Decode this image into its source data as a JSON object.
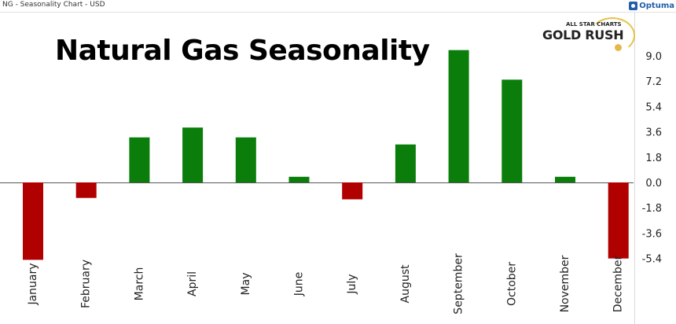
{
  "window": {
    "title": "NG - Seasonality Chart - USD",
    "brand": "Optuma"
  },
  "logo": {
    "line1": "ALL STAR CHARTS",
    "line2": "GOLD RUSH"
  },
  "chart_data": {
    "type": "bar",
    "title": "Natural Gas Seasonality",
    "categories": [
      "January",
      "February",
      "March",
      "April",
      "May",
      "June",
      "July",
      "August",
      "September",
      "October",
      "November",
      "December"
    ],
    "values": [
      -5.5,
      -1.1,
      3.2,
      3.9,
      3.2,
      0.4,
      -1.2,
      2.7,
      9.4,
      7.3,
      0.4,
      -5.4
    ],
    "y_ticks": [
      "9.0",
      "7.2",
      "5.4",
      "3.6",
      "1.8",
      "0.0",
      "-1.8",
      "-3.6",
      "-5.4"
    ],
    "ylim": [
      -6.1,
      10.0
    ],
    "positive_color": "#0a7d0a",
    "negative_color": "#b00000",
    "grid": false,
    "zero_line": true,
    "y_axis_position": "right"
  }
}
